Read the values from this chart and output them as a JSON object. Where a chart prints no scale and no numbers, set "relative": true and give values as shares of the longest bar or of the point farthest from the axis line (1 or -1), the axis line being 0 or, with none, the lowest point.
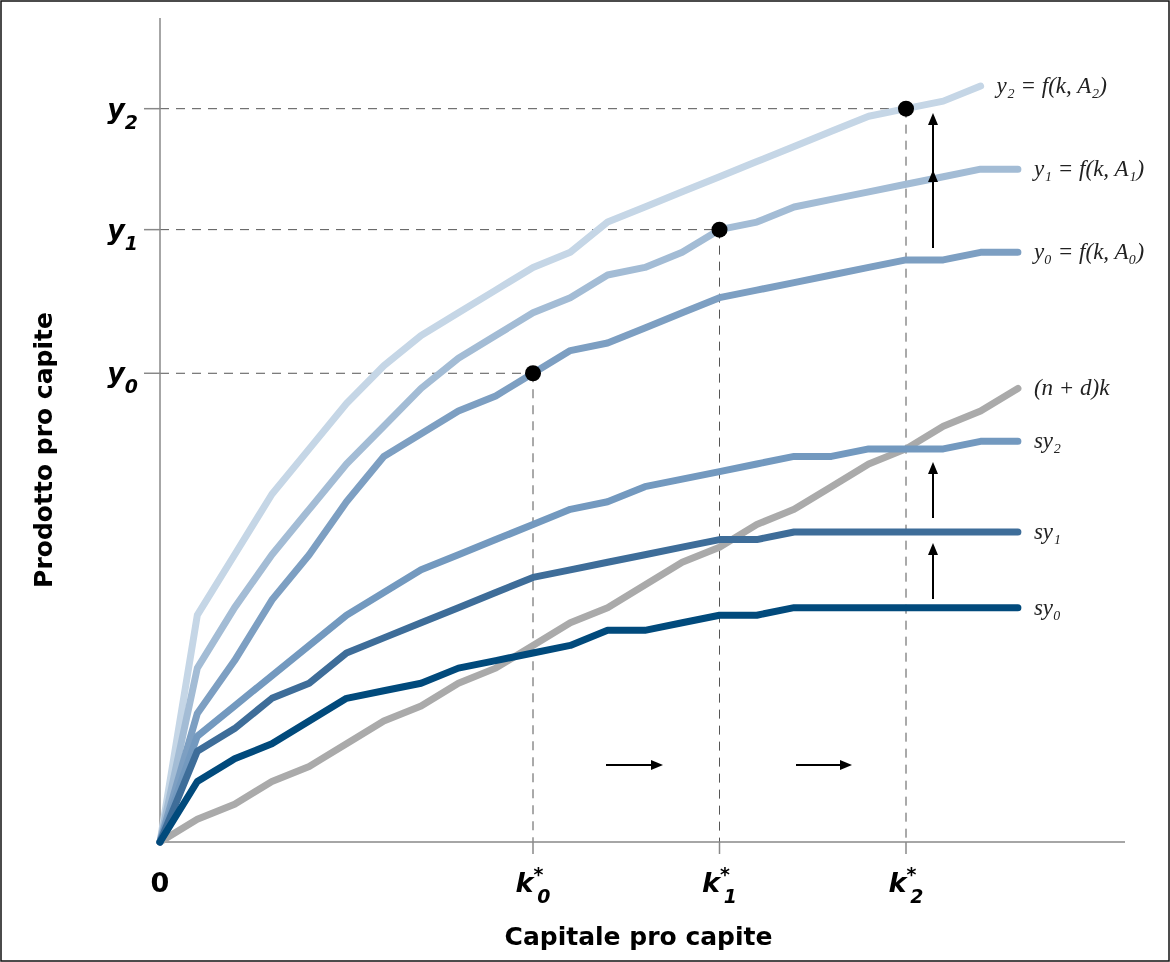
{
  "chart_data": {
    "type": "line",
    "xlabel": "Capitale pro capite",
    "ylabel": "Prodotto pro capite",
    "relative": true,
    "categories": [
      "0",
      null,
      null,
      null,
      null,
      null,
      null,
      null,
      null,
      null,
      "k$^{*}$$_{0}$",
      null,
      null,
      null,
      null,
      "k$^{*}$$_{1}$",
      null,
      null,
      null,
      null,
      "k$^{*}$$_{2}$",
      null,
      null,
      null
    ],
    "annotations": [
      {
        "text": "y$_{0}$",
        "x": "k$^{*}$$_{0}$",
        "y": 0.62
      },
      {
        "text": "y$_{1}$",
        "x": "k$^{*}$$_{1}$",
        "y": 0.81
      },
      {
        "text": "y$_{2}$",
        "x": "k$^{*}$$_{2}$",
        "y": 0.97
      }
    ],
    "grid": "x",
    "legend": false,
    "line_style": "solid",
    "series": [
      {
        "name": "y₂ = f(k, A₂)",
        "color": "#c5d6e6",
        "values": [
          0,
          0.3,
          0.38,
          0.46,
          0.52,
          0.58,
          0.63,
          0.67,
          0.7,
          0.73,
          0.76,
          0.78,
          0.82,
          0.84,
          0.86,
          0.88,
          0.9,
          0.92,
          0.94,
          0.96,
          0.97,
          0.98,
          1.0,
          null
        ]
      },
      {
        "name": "y₁ = f(k, A₁)",
        "color": "#a3bcd5",
        "values": [
          0,
          0.23,
          0.31,
          0.38,
          0.44,
          0.5,
          0.55,
          0.6,
          0.64,
          0.67,
          0.7,
          0.72,
          0.75,
          0.76,
          0.78,
          0.81,
          0.82,
          0.84,
          0.85,
          0.86,
          0.87,
          0.88,
          0.89,
          0.89
        ]
      },
      {
        "name": "y₀ = f(k, A₀)",
        "color": "#7d9fc2",
        "values": [
          0,
          0.17,
          0.24,
          0.32,
          0.38,
          0.45,
          0.51,
          0.54,
          0.57,
          0.59,
          0.62,
          0.65,
          0.66,
          0.68,
          0.7,
          0.72,
          0.73,
          0.74,
          0.75,
          0.76,
          0.77,
          0.77,
          0.78,
          0.78
        ]
      },
      {
        "name": "(n + d)k",
        "color": "#aaaaaa",
        "values": [
          0,
          0.03,
          0.05,
          0.08,
          0.1,
          0.13,
          0.16,
          0.18,
          0.21,
          0.23,
          0.26,
          0.29,
          0.31,
          0.34,
          0.37,
          0.39,
          0.42,
          0.44,
          0.47,
          0.5,
          0.52,
          0.55,
          0.57,
          0.6
        ]
      },
      {
        "name": "sy₂",
        "color": "#7399bf",
        "values": [
          0,
          0.14,
          0.18,
          0.22,
          0.26,
          0.3,
          0.33,
          0.36,
          0.38,
          0.4,
          0.42,
          0.44,
          0.45,
          0.47,
          0.48,
          0.49,
          0.5,
          0.51,
          0.51,
          0.52,
          0.52,
          0.52,
          0.53,
          0.53
        ]
      },
      {
        "name": "sy₁",
        "color": "#3e6d99",
        "values": [
          0,
          0.12,
          0.15,
          0.19,
          0.21,
          0.25,
          0.27,
          0.29,
          0.31,
          0.33,
          0.35,
          0.36,
          0.37,
          0.38,
          0.39,
          0.4,
          0.4,
          0.41,
          0.41,
          0.41,
          0.41,
          0.41,
          0.41,
          0.41
        ]
      },
      {
        "name": "sy₀",
        "color": "#014a7c",
        "values": [
          0,
          0.08,
          0.11,
          0.13,
          0.16,
          0.19,
          0.2,
          0.21,
          0.23,
          0.24,
          0.25,
          0.26,
          0.28,
          0.28,
          0.29,
          0.3,
          0.3,
          0.31,
          0.31,
          0.31,
          0.31,
          0.31,
          0.31,
          0.31
        ]
      }
    ]
  }
}
